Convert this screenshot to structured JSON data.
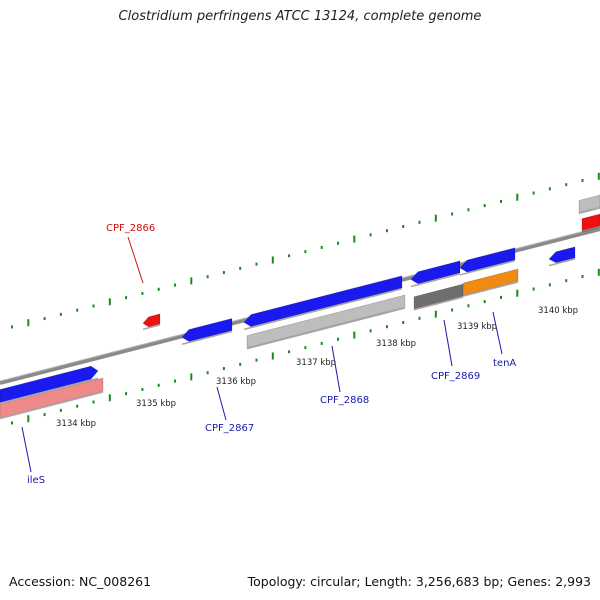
{
  "title": "Clostridium perfringens ATCC 13124, complete genome",
  "footer": {
    "accession": "Accession: NC_008261",
    "stats": "Topology: circular; Length: 3,256,683 bp; Genes: 2,993"
  },
  "colors": {
    "backbone": "#8a8a8a",
    "tick": "#1a8a1a",
    "gene_blue": "#1a1aee",
    "gene_red": "#ee1111",
    "gene_pink": "#f08a8a",
    "gene_gray": "#bdbdbd",
    "gene_darkgray": "#6e6e6e",
    "gene_orange": "#f18a10",
    "label_blue": "#1a1aaa",
    "label_red": "#cc1111"
  },
  "ruler": {
    "unit": "kbp",
    "labels": [
      "3134 kbp",
      "3135 kbp",
      "3136 kbp",
      "3137 kbp",
      "3138 kbp",
      "3139 kbp",
      "3140 kbp"
    ]
  },
  "gene_labels": [
    {
      "name": "ileS",
      "color": "label_blue"
    },
    {
      "name": "CPF_2867",
      "color": "label_blue"
    },
    {
      "name": "CPF_2868",
      "color": "label_blue"
    },
    {
      "name": "CPF_2869",
      "color": "label_blue"
    },
    {
      "name": "tenA",
      "color": "label_blue"
    },
    {
      "name": "CPF_2866",
      "color": "label_red"
    }
  ]
}
